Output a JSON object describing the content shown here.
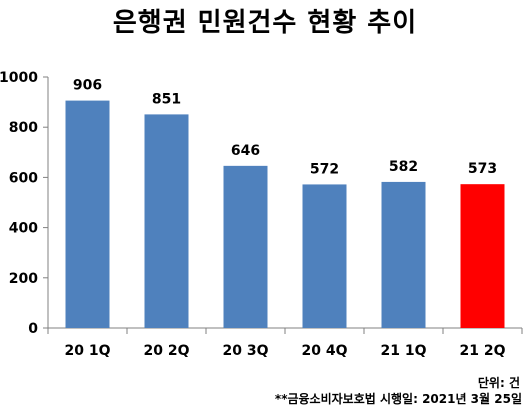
{
  "chart_data": {
    "type": "bar",
    "title": "은행권 민원건수 현황 추이",
    "categories": [
      "20 1Q",
      "20 2Q",
      "20 3Q",
      "20 4Q",
      "21 1Q",
      "21 2Q"
    ],
    "values": [
      906,
      851,
      646,
      572,
      582,
      573
    ],
    "data_labels": [
      "906",
      "851",
      "646",
      "572",
      "582",
      "573"
    ],
    "ylim": [
      0,
      1000
    ],
    "yticks": [
      0,
      200,
      400,
      600,
      800,
      1000
    ],
    "ytick_labels": [
      "0",
      "200",
      "400",
      "600",
      "800",
      "1000"
    ],
    "xlabel": "",
    "ylabel": "",
    "grid": false,
    "legend": "none",
    "colors": {
      "bar": "#4F81BD",
      "highlight": "#FF0000",
      "axis": "#808080"
    },
    "highlight_index": 5
  },
  "notes": {
    "unit": "단위: 건",
    "footnote": "**금융소비자보호법 시행일: 2021년 3월 25일"
  }
}
